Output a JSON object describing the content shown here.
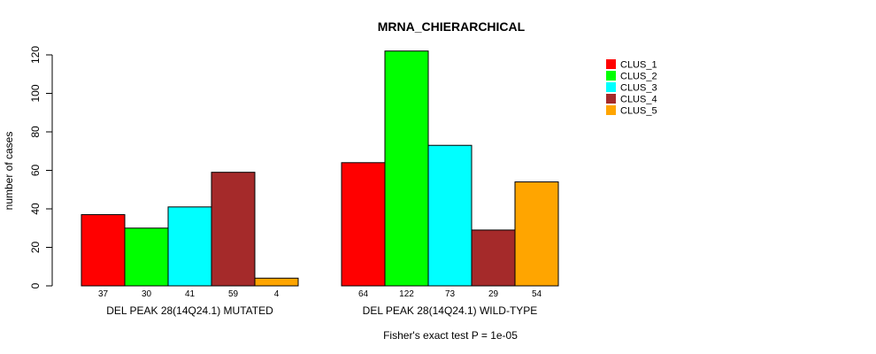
{
  "chart_data": {
    "type": "bar",
    "title": "MRNA_CHIERARCHICAL",
    "ylabel": "number of cases",
    "xlabel": "",
    "ylim": [
      0,
      125
    ],
    "yticks": [
      0,
      20,
      40,
      60,
      80,
      100,
      120
    ],
    "series_names": [
      "CLUS_1",
      "CLUS_2",
      "CLUS_3",
      "CLUS_4",
      "CLUS_5"
    ],
    "colors": [
      "#ff0000",
      "#00ff00",
      "#00ffff",
      "#a52a2a",
      "#ffa500"
    ],
    "groups": [
      {
        "label": "DEL PEAK 28(14Q24.1) MUTATED",
        "values": [
          37,
          30,
          41,
          59,
          4
        ]
      },
      {
        "label": "DEL PEAK 28(14Q24.1) WILD-TYPE",
        "values": [
          64,
          122,
          73,
          29,
          54
        ]
      }
    ],
    "legend_position": "top-right",
    "footer": "Fisher's exact test P = 1e-05"
  }
}
